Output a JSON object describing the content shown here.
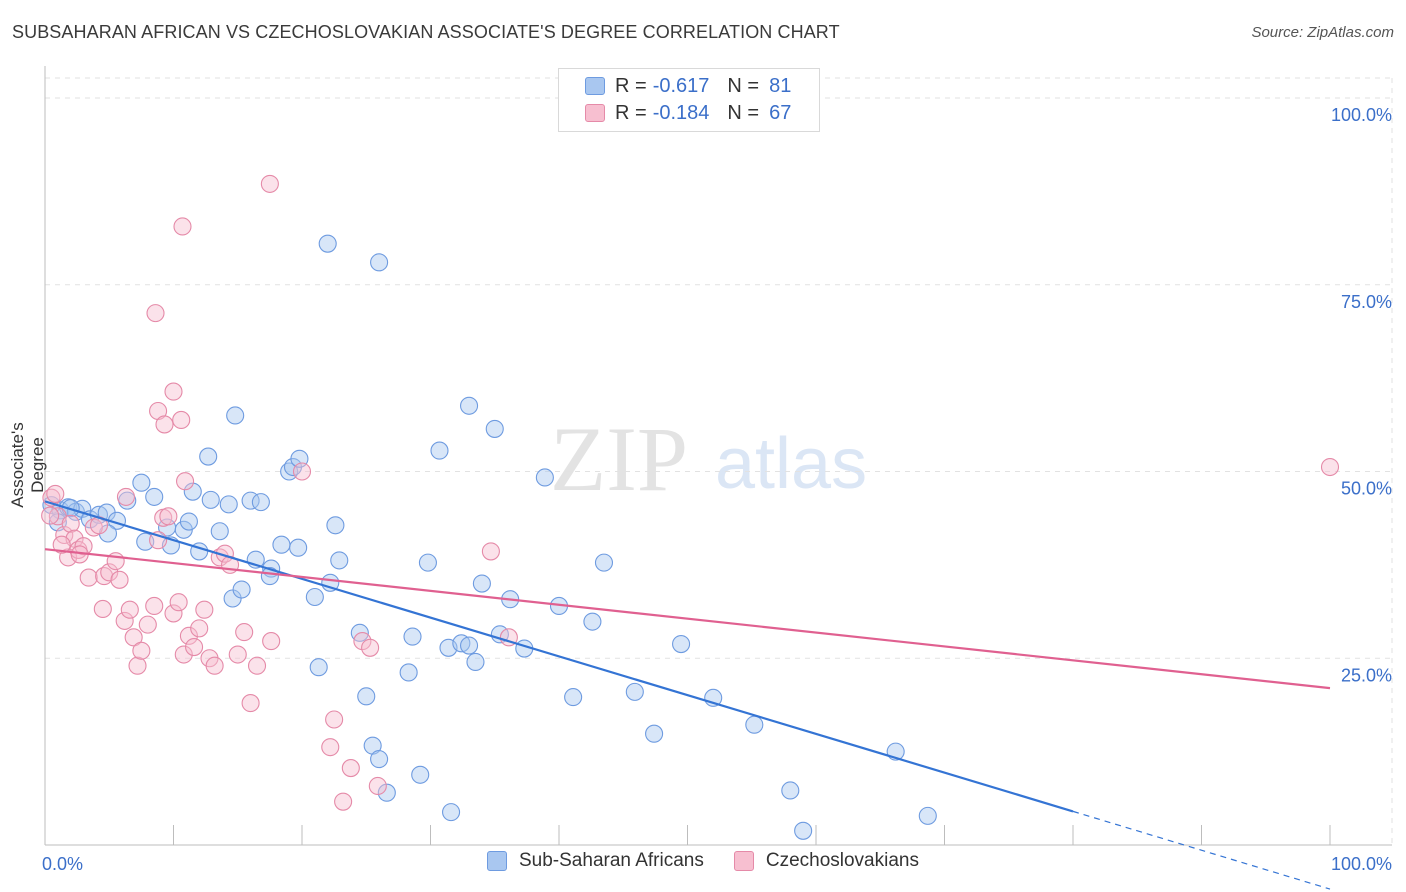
{
  "title": "SUBSAHARAN AFRICAN VS CZECHOSLOVAKIAN ASSOCIATE'S DEGREE CORRELATION CHART",
  "source": "Source: ZipAtlas.com",
  "watermark": {
    "zip": "ZIP",
    "atlas": "atlas"
  },
  "legend_top": {
    "rows": [
      {
        "r_label": "R =",
        "r_value": "-0.617",
        "n_label": "N =",
        "n_value": "81",
        "color": "#a9c7f0",
        "edge": "#6e9be0"
      },
      {
        "r_label": "R =",
        "r_value": "-0.184",
        "n_label": "N =",
        "n_value": "67",
        "color": "#f7bfd0",
        "edge": "#e58aa8"
      }
    ]
  },
  "legend_bottom": [
    {
      "label": "Sub-Saharan Africans",
      "color": "#a9c7f0",
      "edge": "#6e9be0"
    },
    {
      "label": "Czechoslovakians",
      "color": "#f7bfd0",
      "edge": "#e58aa8"
    }
  ],
  "chart_data": {
    "type": "scatter",
    "ylabel": "Associate's Degree",
    "x_ticks": [
      "0.0%",
      "100.0%"
    ],
    "y_ticks": [
      "25.0%",
      "50.0%",
      "75.0%",
      "100.0%"
    ],
    "xlim": [
      0,
      100
    ],
    "ylim": [
      0,
      100
    ],
    "grid": true,
    "colors": {
      "blue": "#3474d4",
      "pink": "#e06090",
      "tick_text": "#3b6fc9"
    },
    "series": [
      {
        "name": "Sub-Saharan Africans",
        "color": "#6e9be0",
        "fill": "rgba(169,199,240,0.45)",
        "trend": {
          "x0": 0,
          "y0": 46.0,
          "x1": 80,
          "y1": 4.5,
          "dash_to_x": 100,
          "dash_to_y": -5.9
        },
        "points": [
          [
            0.5,
            45.5
          ],
          [
            1.2,
            44.8
          ],
          [
            1.8,
            45.2
          ],
          [
            2.4,
            44.6
          ],
          [
            2.9,
            45.0
          ],
          [
            3.5,
            43.6
          ],
          [
            4.2,
            44.2
          ],
          [
            1.0,
            43.2
          ],
          [
            2.0,
            45.1
          ],
          [
            4.8,
            44.5
          ],
          [
            5.6,
            43.4
          ],
          [
            4.9,
            41.7
          ],
          [
            6.4,
            46.1
          ],
          [
            7.5,
            48.5
          ],
          [
            7.8,
            40.6
          ],
          [
            8.5,
            46.6
          ],
          [
            9.5,
            42.5
          ],
          [
            9.8,
            40.1
          ],
          [
            10.8,
            42.2
          ],
          [
            11.2,
            43.3
          ],
          [
            11.5,
            47.3
          ],
          [
            12.0,
            39.3
          ],
          [
            12.9,
            46.2
          ],
          [
            13.6,
            42.0
          ],
          [
            14.3,
            45.6
          ],
          [
            14.6,
            33.0
          ],
          [
            15.3,
            34.2
          ],
          [
            16.0,
            46.1
          ],
          [
            16.4,
            38.2
          ],
          [
            17.6,
            37.0
          ],
          [
            16.8,
            45.9
          ],
          [
            19.0,
            50.0
          ],
          [
            19.3,
            50.6
          ],
          [
            19.7,
            39.8
          ],
          [
            18.4,
            40.2
          ],
          [
            17.5,
            36.0
          ],
          [
            22.6,
            42.8
          ],
          [
            22.9,
            38.1
          ],
          [
            22.2,
            35.1
          ],
          [
            21.0,
            33.2
          ],
          [
            21.3,
            23.8
          ],
          [
            24.5,
            28.4
          ],
          [
            25.0,
            19.9
          ],
          [
            25.5,
            13.3
          ],
          [
            26.0,
            11.5
          ],
          [
            26.6,
            7.0
          ],
          [
            28.3,
            23.1
          ],
          [
            28.6,
            27.9
          ],
          [
            29.8,
            37.8
          ],
          [
            30.7,
            52.8
          ],
          [
            31.4,
            26.4
          ],
          [
            32.4,
            27.0
          ],
          [
            33.0,
            26.7
          ],
          [
            33.5,
            24.5
          ],
          [
            34.0,
            35.0
          ],
          [
            35.0,
            55.7
          ],
          [
            35.4,
            28.2
          ],
          [
            36.2,
            32.9
          ],
          [
            37.3,
            26.3
          ],
          [
            38.9,
            49.2
          ],
          [
            40.0,
            32.0
          ],
          [
            41.1,
            19.8
          ],
          [
            42.6,
            29.9
          ],
          [
            43.5,
            37.8
          ],
          [
            45.9,
            20.5
          ],
          [
            47.4,
            14.9
          ],
          [
            49.5,
            26.9
          ],
          [
            52.0,
            19.7
          ],
          [
            55.2,
            16.1
          ],
          [
            58.0,
            7.3
          ],
          [
            59.0,
            1.9
          ],
          [
            66.2,
            12.5
          ],
          [
            68.7,
            3.9
          ],
          [
            29.2,
            9.4
          ],
          [
            31.6,
            4.4
          ],
          [
            26.0,
            78.0
          ],
          [
            22.0,
            80.5
          ],
          [
            14.8,
            57.5
          ],
          [
            19.8,
            51.7
          ],
          [
            12.7,
            52.0
          ],
          [
            33.0,
            58.8
          ]
        ]
      },
      {
        "name": "Czechoslovakians",
        "color": "#e58aa8",
        "fill": "rgba(247,191,208,0.45)",
        "trend": {
          "x0": 0,
          "y0": 39.6,
          "x1": 100,
          "y1": 21.0
        },
        "points": [
          [
            0.5,
            46.5
          ],
          [
            0.8,
            47.0
          ],
          [
            1.0,
            44.0
          ],
          [
            1.5,
            41.5
          ],
          [
            1.8,
            38.5
          ],
          [
            2.0,
            43.0
          ],
          [
            2.3,
            41.0
          ],
          [
            2.6,
            39.5
          ],
          [
            3.0,
            40.0
          ],
          [
            3.4,
            35.8
          ],
          [
            3.8,
            42.5
          ],
          [
            4.2,
            42.8
          ],
          [
            4.6,
            36.0
          ],
          [
            5.0,
            36.5
          ],
          [
            5.5,
            38.0
          ],
          [
            5.8,
            35.5
          ],
          [
            6.2,
            30.0
          ],
          [
            6.6,
            31.5
          ],
          [
            6.9,
            27.8
          ],
          [
            7.2,
            24.0
          ],
          [
            7.5,
            26.0
          ],
          [
            8.0,
            29.5
          ],
          [
            8.5,
            32.0
          ],
          [
            8.8,
            40.8
          ],
          [
            9.2,
            43.8
          ],
          [
            9.6,
            44.0
          ],
          [
            10.0,
            31.0
          ],
          [
            10.4,
            32.5
          ],
          [
            10.8,
            25.5
          ],
          [
            11.2,
            28.0
          ],
          [
            11.6,
            26.5
          ],
          [
            12.0,
            29.0
          ],
          [
            12.4,
            31.5
          ],
          [
            12.8,
            25.0
          ],
          [
            13.2,
            24.0
          ],
          [
            13.6,
            38.5
          ],
          [
            14.0,
            39.0
          ],
          [
            14.4,
            37.5
          ],
          [
            15.0,
            25.5
          ],
          [
            15.5,
            28.5
          ],
          [
            16.0,
            19.0
          ],
          [
            16.5,
            24.0
          ],
          [
            6.3,
            46.6
          ],
          [
            8.8,
            58.1
          ],
          [
            9.3,
            56.3
          ],
          [
            10.0,
            60.7
          ],
          [
            10.6,
            56.9
          ],
          [
            8.6,
            71.2
          ],
          [
            10.9,
            48.7
          ],
          [
            17.6,
            27.3
          ],
          [
            20.0,
            50.0
          ],
          [
            22.5,
            16.8
          ],
          [
            23.8,
            10.3
          ],
          [
            22.2,
            13.1
          ],
          [
            23.2,
            5.8
          ],
          [
            25.9,
            7.9
          ],
          [
            24.7,
            27.3
          ],
          [
            25.3,
            26.4
          ],
          [
            34.7,
            39.3
          ],
          [
            36.1,
            27.8
          ],
          [
            100.0,
            50.6
          ],
          [
            17.5,
            88.5
          ],
          [
            10.7,
            82.8
          ],
          [
            2.7,
            38.9
          ],
          [
            4.5,
            31.6
          ],
          [
            0.4,
            44.1
          ],
          [
            1.3,
            40.2
          ]
        ]
      }
    ]
  }
}
